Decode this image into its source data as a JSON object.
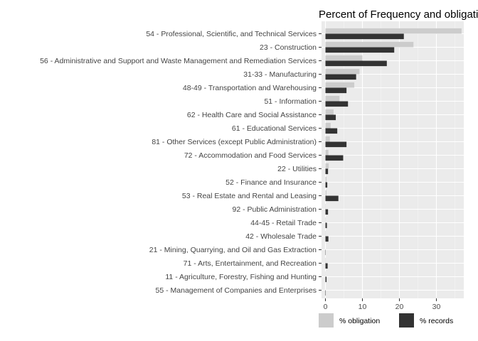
{
  "chart_data": {
    "type": "bar",
    "orientation": "horizontal",
    "title": "Percent of Frequency and obligation",
    "xlabel": "",
    "ylabel": "",
    "xlim": [
      0,
      38
    ],
    "x_ticks": [
      0,
      10,
      20,
      30
    ],
    "grid": true,
    "legend_position": "bottom",
    "categories": [
      "54  -  Professional, Scientific, and Technical Services",
      "23  -  Construction",
      "56  -  Administrative and Support and Waste Management and Remediation Services",
      "31-33  -  Manufacturing",
      "48-49  -  Transportation and Warehousing",
      "51  -  Information",
      "62  -  Health Care and Social Assistance",
      "61  -  Educational Services",
      "81  -  Other Services (except Public Administration)",
      "72  -  Accommodation and Food Services",
      "22  -  Utilities",
      "52  -  Finance and Insurance",
      "53  -  Real Estate and Rental and Leasing",
      "92  -  Public Administration",
      "44-45  -  Retail Trade",
      "42  -  Wholesale Trade",
      "21  -  Mining, Quarrying, and Oil and Gas Extraction",
      "71  -  Arts, Entertainment, and Recreation",
      "11  -  Agriculture, Forestry, Fishing and Hunting",
      "55  -  Management of Companies and Enterprises"
    ],
    "series": [
      {
        "name": "% obligation",
        "color": "#cccccc",
        "values": [
          36.8,
          23.8,
          10.0,
          9.2,
          7.8,
          3.8,
          2.2,
          1.4,
          1.2,
          0.8,
          0.9,
          0.3,
          0.3,
          0.1,
          0.1,
          0.1,
          0.0,
          0.1,
          0.05,
          0.0
        ]
      },
      {
        "name": "% records",
        "color": "#333333",
        "values": [
          21.2,
          18.6,
          16.6,
          8.3,
          5.7,
          6.1,
          2.8,
          3.2,
          5.7,
          4.8,
          0.7,
          0.5,
          3.5,
          0.7,
          0.4,
          0.8,
          0.05,
          0.6,
          0.3,
          0.1
        ]
      }
    ]
  }
}
